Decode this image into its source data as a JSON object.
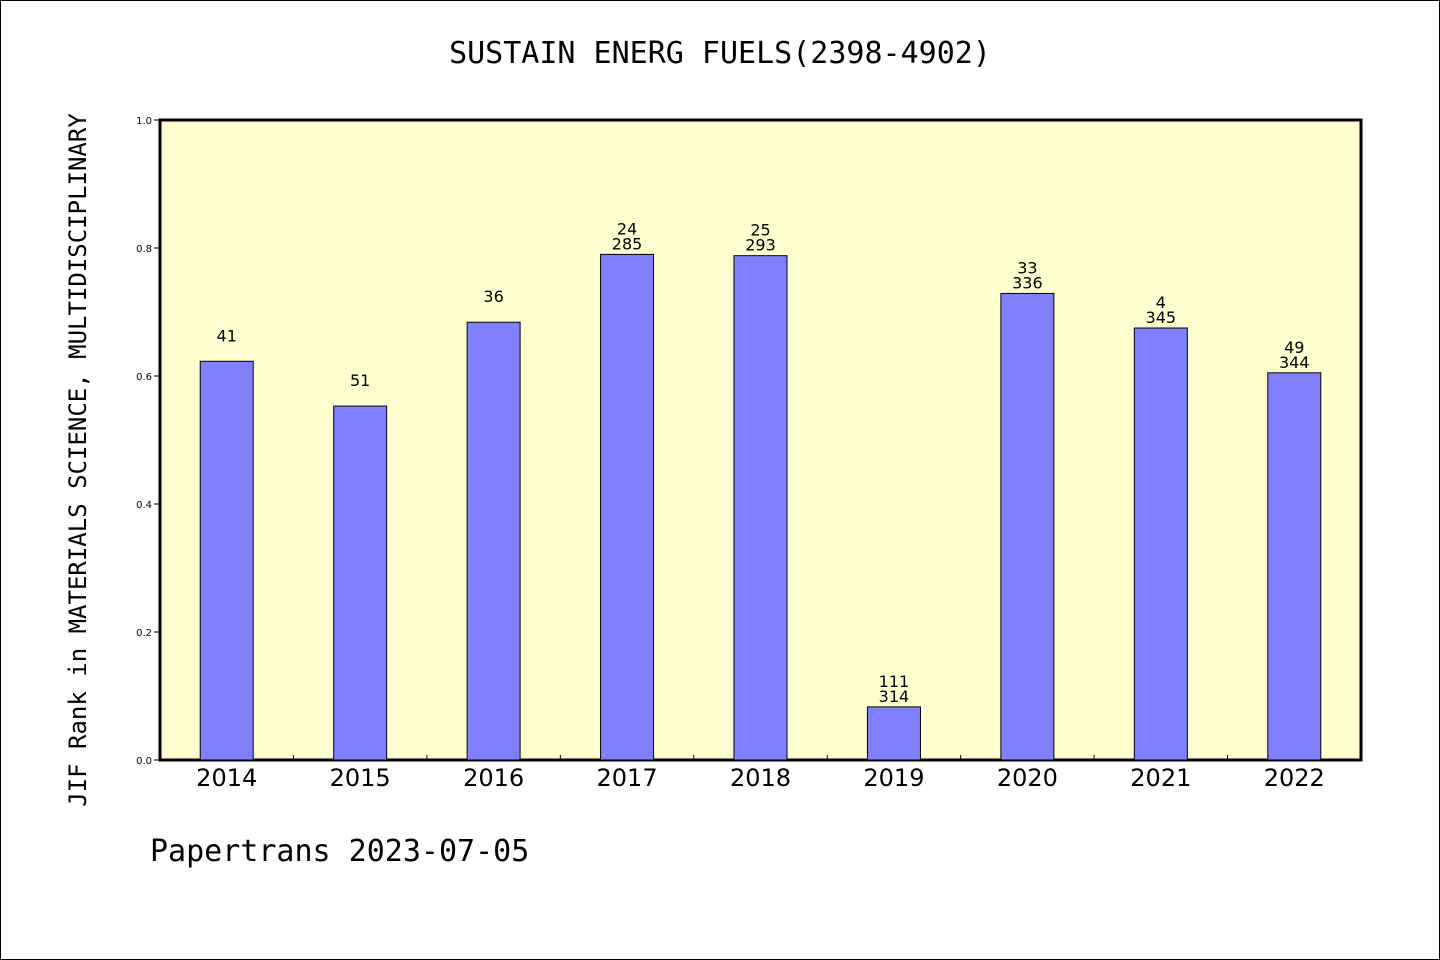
{
  "chart_data": {
    "type": "bar",
    "title": "SUSTAIN ENERG FUELS(2398-4902)",
    "ylabel": "JIF Rank in MATERIALS SCIENCE, MULTIDISCIPLINARY",
    "xlabel": "",
    "ylim": [
      0,
      1.0
    ],
    "yticks": [
      "0.0",
      "0.2",
      "0.4",
      "0.6",
      "0.8",
      "1.0"
    ],
    "categories": [
      "2014",
      "2015",
      "2016",
      "2017",
      "2018",
      "2019",
      "2020",
      "2021",
      "2022"
    ],
    "values": [
      0.623,
      0.553,
      0.684,
      0.79,
      0.788,
      0.083,
      0.729,
      0.675,
      0.605
    ],
    "labels_top": [
      "",
      "",
      "",
      "24",
      "25",
      "111",
      "33",
      "4",
      "49"
    ],
    "labels_bottom": [
      "41",
      "51",
      "36",
      "285",
      "293",
      "314",
      "336",
      "345",
      "344"
    ],
    "grid": false,
    "colors": {
      "bar": "#8080ff",
      "plot_background": "#ffffd0",
      "axis": "#000000"
    }
  },
  "footer": "Papertrans 2023-07-05"
}
